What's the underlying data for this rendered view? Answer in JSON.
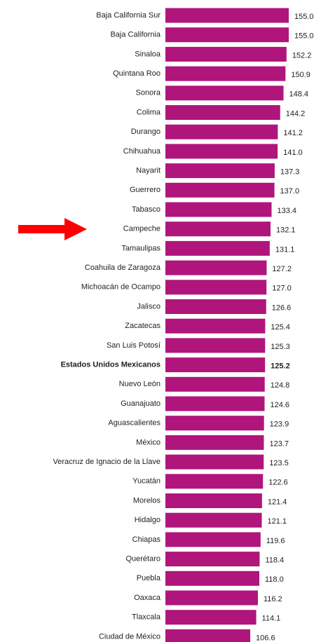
{
  "chart_data": {
    "type": "barh",
    "categories": [
      "Baja California Sur",
      "Baja California",
      "Sinaloa",
      "Quintana Roo",
      "Sonora",
      "Colima",
      "Durango",
      "Chihuahua",
      "Nayarit",
      "Guerrero",
      "Tabasco",
      "Campeche",
      "Tamaulipas",
      "Coahuila de Zaragoza",
      "Michoacán de Ocampo",
      "Jalisco",
      "Zacatecas",
      "San Luis Potosí",
      "Estados Unidos Mexicanos",
      "Nuevo León",
      "Guanajuato",
      "Aguascalientes",
      "México",
      "Veracruz de Ignacio de la Llave",
      "Yucatán",
      "Morelos",
      "Hidalgo",
      "Chiapas",
      "Querétaro",
      "Puebla",
      "Oaxaca",
      "Tlaxcala",
      "Ciudad de México"
    ],
    "values": [
      155.0,
      155.0,
      152.2,
      150.9,
      148.4,
      144.2,
      141.2,
      141.0,
      137.3,
      137.0,
      133.4,
      132.1,
      131.1,
      127.2,
      127.0,
      126.6,
      125.4,
      125.3,
      125.2,
      124.8,
      124.6,
      123.9,
      123.7,
      123.5,
      122.6,
      121.4,
      121.1,
      119.6,
      118.4,
      118.0,
      116.2,
      114.1,
      106.6
    ],
    "value_labels": [
      "155.0",
      "155.0",
      "152.2",
      "150.9",
      "148.4",
      "144.2",
      "141.2",
      "141.0",
      "137.3",
      "137.0",
      "133.4",
      "132.1",
      "131.1",
      "127.2",
      "127.0",
      "126.6",
      "125.4",
      "125.3",
      "125.2",
      "124.8",
      "124.6",
      "123.9",
      "123.7",
      "123.5",
      "122.6",
      "121.4",
      "121.1",
      "119.6",
      "118.4",
      "118.0",
      "116.2",
      "114.1",
      "106.6"
    ],
    "color": "#b0157c",
    "bold_index": 18
  }
}
